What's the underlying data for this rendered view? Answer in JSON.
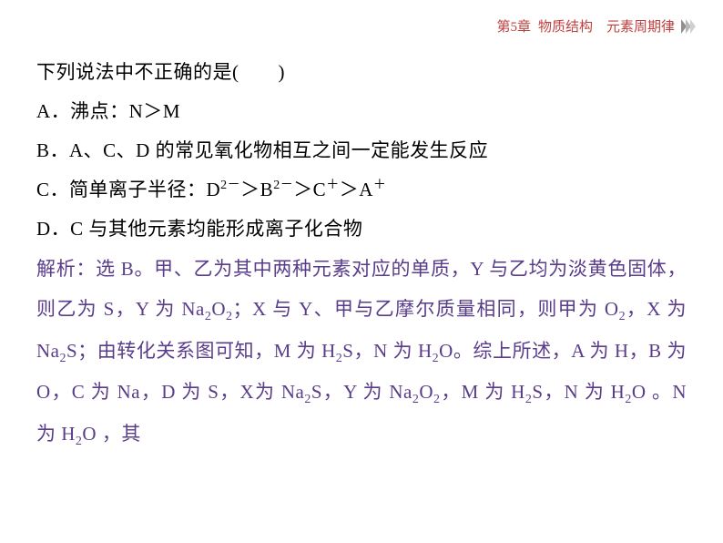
{
  "header": {
    "chapter": "第5章",
    "title": "物质结构　元素周期律",
    "header_color": "#c04040",
    "chevron_colors": [
      "#909090",
      "#b8b8b8",
      "#d0d0d0"
    ]
  },
  "question": {
    "prompt": "下列说法中不正确的是(　　)",
    "options": {
      "A": "A．沸点：N＞M",
      "B": "B．A、C、D 的常见氧化物相互之间一定能发生反应",
      "C_prefix": "C．简单离子半径：D",
      "C_sup1": "2－",
      "C_mid1": "＞B",
      "C_sup2": "2－",
      "C_mid2": "＞C",
      "C_sup3": "＋",
      "C_mid3": "＞A",
      "C_sup4": "＋",
      "D": "D．C 与其他元素均能形成离子化合物"
    }
  },
  "answer": {
    "prefix": "解析：选 B。",
    "part1": "甲、乙为其中两种元素对应的单质，Y 与乙均为淡黄色固体，则乙为 S，Y 为 Na",
    "sub1": "2",
    "part2": "O",
    "sub2": "2",
    "part3": "；X 与 Y、甲与乙摩尔质量相同，则甲为 O",
    "sub3": "2",
    "part4": "，X 为 Na",
    "sub4": "2",
    "part5": "S；由转化关系图可知，M 为 H",
    "sub5": "2",
    "part6": "S，N 为 H",
    "sub6": "2",
    "part7": "O。综上所述，A 为 H，B 为 O，C 为 Na，D 为 S，X为 Na",
    "sub7": "2",
    "part8": "S，Y 为 Na",
    "sub8": "2",
    "part9": "O",
    "sub9": "2",
    "part10": "，M 为 H",
    "sub10": "2",
    "part11": "S，N 为 H",
    "sub11": "2",
    "part12": "O 。N 为 H",
    "sub12": "2",
    "part13": "O ，其"
  },
  "styling": {
    "body_width": 794,
    "body_height": 596,
    "background_color": "#ffffff",
    "text_color": "#000000",
    "answer_color": "#5a3d8a",
    "font_size": 21,
    "font_family": "SimSun, Times New Roman, serif",
    "line_height": 2.05
  }
}
